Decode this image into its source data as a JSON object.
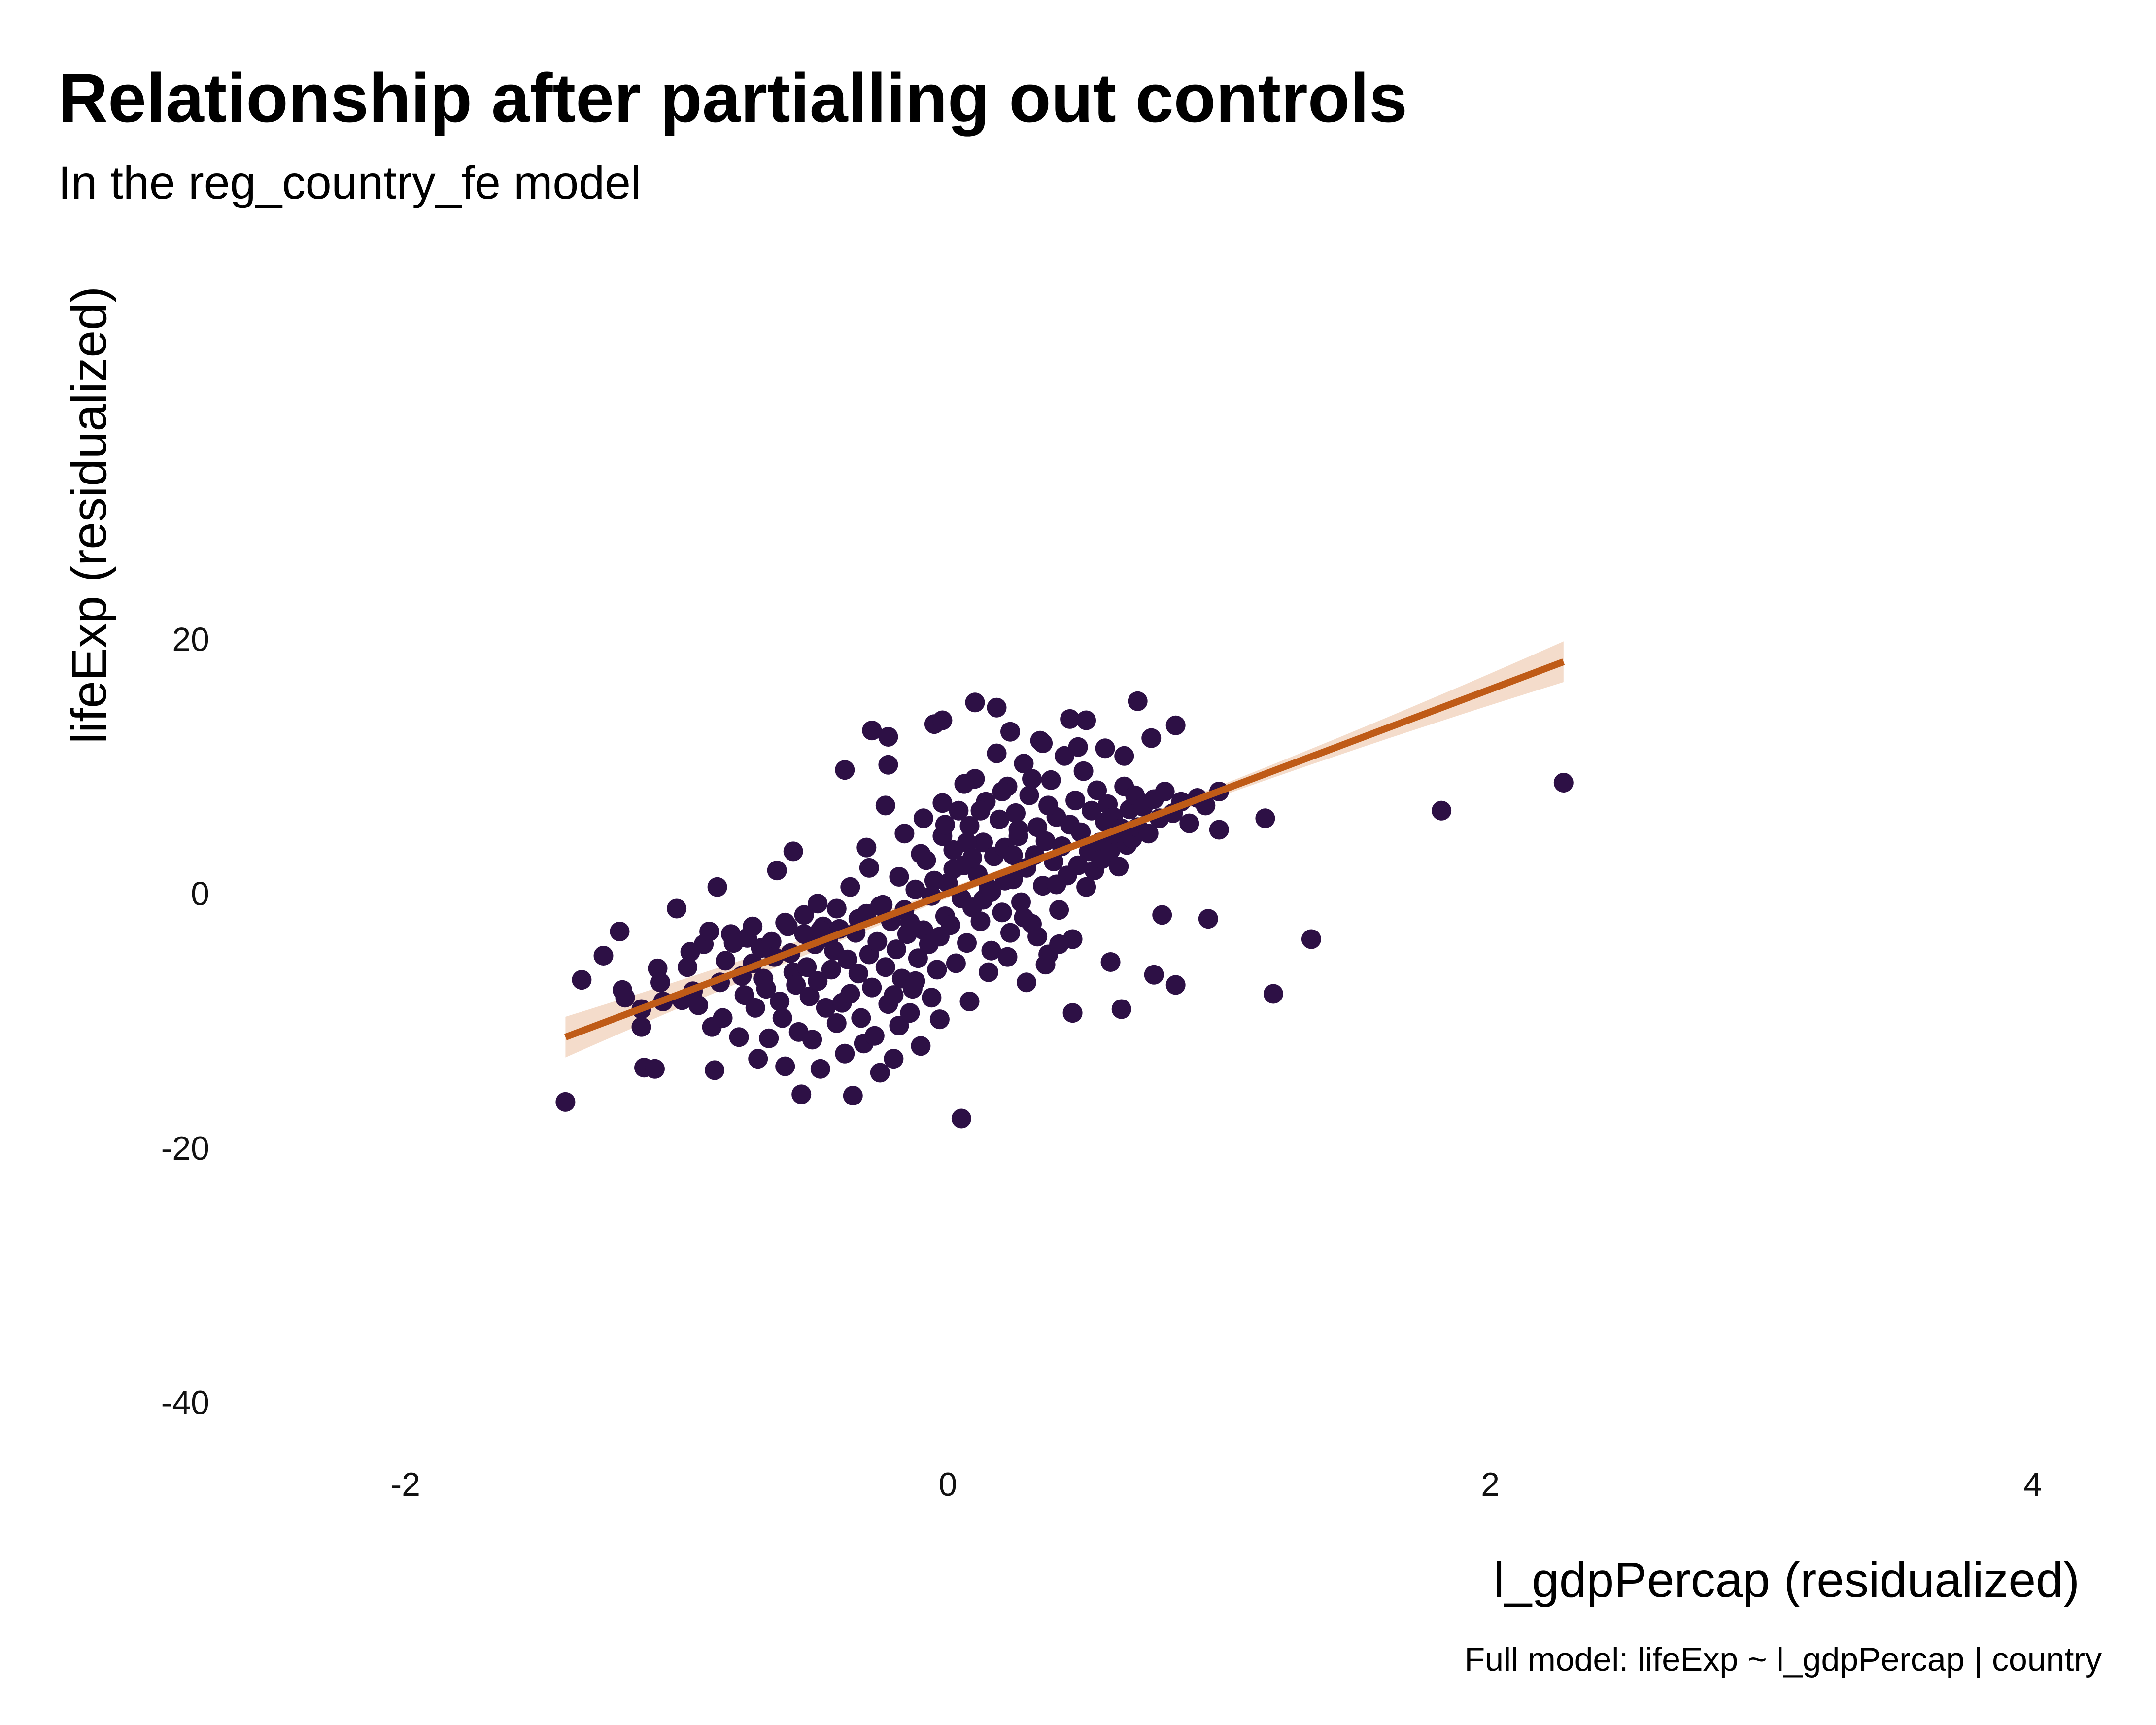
{
  "chart_data": {
    "type": "scatter",
    "title": "Relationship after partialling out controls",
    "subtitle": "In the reg_country_fe model",
    "xlabel": "l_gdpPercap (residualized)",
    "ylabel": "lifeExp (residualized)",
    "caption": "Full model: lifeExp ~ l_gdpPercap | country",
    "xlim": [
      -2.55,
      4.3
    ],
    "ylim": [
      -46,
      40
    ],
    "x_ticks": [
      -2,
      0,
      2,
      4
    ],
    "x_tick_labels": [
      "-2",
      "0",
      "2",
      "4"
    ],
    "y_ticks": [
      -40,
      -20,
      0,
      20
    ],
    "y_tick_labels": [
      "-40",
      "-20",
      "0",
      "20"
    ],
    "grid": false,
    "legend": "none",
    "point_color": "#2D1045",
    "fit_color": "#BF5B17",
    "band_color": "#F4DCCB",
    "fit": {
      "x": [
        -1.41,
        2.27
      ],
      "y": [
        -11.3,
        18.2
      ],
      "band_halfwidth_edge": 1.6,
      "band_halfwidth_center": 0.3
    },
    "points": [
      [
        -1.41,
        -16.4
      ],
      [
        -1.35,
        -6.8
      ],
      [
        -1.27,
        -4.9
      ],
      [
        -1.21,
        -3.0
      ],
      [
        -1.2,
        -7.6
      ],
      [
        -1.19,
        -8.2
      ],
      [
        -1.13,
        -9.1
      ],
      [
        -1.13,
        -10.5
      ],
      [
        -1.12,
        -13.7
      ],
      [
        -1.08,
        -13.8
      ],
      [
        -1.07,
        -5.9
      ],
      [
        -1.06,
        -7.0
      ],
      [
        -1.05,
        -8.5
      ],
      [
        -1.0,
        -1.2
      ],
      [
        -0.98,
        -8.4
      ],
      [
        -0.96,
        -5.8
      ],
      [
        -0.94,
        -7.7
      ],
      [
        -0.92,
        -8.8
      ],
      [
        -0.9,
        -4.0
      ],
      [
        -0.87,
        -10.5
      ],
      [
        -0.86,
        -13.9
      ],
      [
        -0.85,
        0.5
      ],
      [
        -0.84,
        -7.0
      ],
      [
        -0.83,
        -9.8
      ],
      [
        -0.82,
        -5.3
      ],
      [
        -0.8,
        -3.2
      ],
      [
        -0.77,
        -11.3
      ],
      [
        -0.76,
        -6.5
      ],
      [
        -0.75,
        -8.0
      ],
      [
        -0.74,
        -3.5
      ],
      [
        -0.72,
        -5.5
      ],
      [
        -0.71,
        -9.0
      ],
      [
        -0.7,
        -13.0
      ],
      [
        -0.69,
        -4.3
      ],
      [
        -0.68,
        -6.7
      ],
      [
        -0.67,
        -7.5
      ],
      [
        -0.66,
        -11.4
      ],
      [
        -0.65,
        -3.8
      ],
      [
        -0.64,
        -5.0
      ],
      [
        -0.63,
        1.8
      ],
      [
        -0.62,
        -8.5
      ],
      [
        -0.61,
        -9.8
      ],
      [
        -0.6,
        -13.6
      ],
      [
        -0.59,
        -2.6
      ],
      [
        -0.58,
        -4.7
      ],
      [
        -0.57,
        -6.2
      ],
      [
        -0.56,
        -7.2
      ],
      [
        -0.55,
        -10.9
      ],
      [
        -0.54,
        -15.8
      ],
      [
        -0.53,
        -3.2
      ],
      [
        -0.52,
        -5.8
      ],
      [
        -0.51,
        -8.1
      ],
      [
        -0.5,
        -11.5
      ],
      [
        -0.49,
        -4.0
      ],
      [
        -0.48,
        -6.9
      ],
      [
        -0.47,
        -13.8
      ],
      [
        -0.46,
        -2.6
      ],
      [
        -0.45,
        -9.0
      ],
      [
        -0.44,
        -3.5
      ],
      [
        -0.43,
        -6.0
      ],
      [
        -0.42,
        -4.5
      ],
      [
        -0.41,
        -10.2
      ],
      [
        -0.4,
        -2.8
      ],
      [
        -0.39,
        -8.6
      ],
      [
        -0.38,
        -12.6
      ],
      [
        -0.37,
        -5.2
      ],
      [
        -0.36,
        -7.9
      ],
      [
        -0.35,
        -15.9
      ],
      [
        -0.34,
        -3.1
      ],
      [
        -0.33,
        -6.3
      ],
      [
        -0.32,
        -9.8
      ],
      [
        -0.31,
        -11.8
      ],
      [
        -0.3,
        -1.6
      ],
      [
        -0.29,
        -4.8
      ],
      [
        -0.28,
        -7.4
      ],
      [
        -0.27,
        -11.2
      ],
      [
        -0.26,
        -3.8
      ],
      [
        -0.25,
        -14.1
      ],
      [
        -0.24,
        -0.9
      ],
      [
        -0.23,
        -5.8
      ],
      [
        -0.22,
        -8.7
      ],
      [
        -0.21,
        -2.2
      ],
      [
        -0.2,
        -13.0
      ],
      [
        -0.19,
        -4.4
      ],
      [
        -0.18,
        -10.4
      ],
      [
        -0.17,
        -6.7
      ],
      [
        -0.16,
        -1.3
      ],
      [
        -0.15,
        -3.2
      ],
      [
        -0.14,
        -9.4
      ],
      [
        -0.13,
        -7.5
      ],
      [
        -0.12,
        0.3
      ],
      [
        -0.11,
        -5.1
      ],
      [
        -0.1,
        -12.0
      ],
      [
        -0.09,
        -2.9
      ],
      [
        -0.08,
        2.6
      ],
      [
        -0.07,
        -4.0
      ],
      [
        -0.06,
        -8.2
      ],
      [
        -0.05,
        1.0
      ],
      [
        -0.04,
        -6.0
      ],
      [
        -0.03,
        -3.4
      ],
      [
        -0.02,
        4.5
      ],
      [
        -0.01,
        -1.8
      ],
      [
        0.0,
        0.8
      ],
      [
        0.01,
        -2.5
      ],
      [
        0.02,
        3.4
      ],
      [
        0.03,
        -5.5
      ],
      [
        0.04,
        6.5
      ],
      [
        0.05,
        -0.4
      ],
      [
        0.06,
        2.2
      ],
      [
        0.07,
        -3.9
      ],
      [
        0.08,
        5.3
      ],
      [
        0.09,
        -1.1
      ],
      [
        0.1,
        9.0
      ],
      [
        0.11,
        1.5
      ],
      [
        0.12,
        -2.2
      ],
      [
        0.13,
        4.0
      ],
      [
        0.14,
        7.2
      ],
      [
        0.15,
        0.4
      ],
      [
        0.16,
        -4.5
      ],
      [
        0.17,
        2.9
      ],
      [
        0.18,
        11.0
      ],
      [
        0.19,
        5.8
      ],
      [
        0.2,
        -1.5
      ],
      [
        0.21,
        3.6
      ],
      [
        0.22,
        8.4
      ],
      [
        0.23,
        -3.1
      ],
      [
        0.24,
        1.1
      ],
      [
        0.25,
        6.3
      ],
      [
        0.26,
        4.5
      ],
      [
        0.27,
        -0.7
      ],
      [
        0.28,
        10.2
      ],
      [
        0.29,
        2.0
      ],
      [
        0.3,
        7.7
      ],
      [
        0.31,
        -2.4
      ],
      [
        0.32,
        3.0
      ],
      [
        0.33,
        5.2
      ],
      [
        0.34,
        12.0
      ],
      [
        0.35,
        0.6
      ],
      [
        0.36,
        4.1
      ],
      [
        0.37,
        -4.8
      ],
      [
        0.38,
        8.9
      ],
      [
        0.39,
        2.5
      ],
      [
        0.4,
        6.0
      ],
      [
        0.41,
        -1.3
      ],
      [
        0.42,
        3.7
      ],
      [
        0.43,
        10.8
      ],
      [
        0.44,
        1.4
      ],
      [
        0.45,
        5.4
      ],
      [
        0.46,
        -3.6
      ],
      [
        0.47,
        7.3
      ],
      [
        0.48,
        2.2
      ],
      [
        0.49,
        4.8
      ],
      [
        0.5,
        9.6
      ],
      [
        0.51,
        0.5
      ],
      [
        0.52,
        3.3
      ],
      [
        0.53,
        6.5
      ],
      [
        0.54,
        1.8
      ],
      [
        0.55,
        8.1
      ],
      [
        0.56,
        4.0
      ],
      [
        0.57,
        2.7
      ],
      [
        0.58,
        5.6
      ],
      [
        0.59,
        7.0
      ],
      [
        0.6,
        3.4
      ],
      [
        0.61,
        6.0
      ],
      [
        0.62,
        4.6
      ],
      [
        0.63,
        2.1
      ],
      [
        0.64,
        5.1
      ],
      [
        0.65,
        8.4
      ],
      [
        0.66,
        3.8
      ],
      [
        0.67,
        6.6
      ],
      [
        0.68,
        4.3
      ],
      [
        0.69,
        7.7
      ],
      [
        0.7,
        5.2
      ],
      [
        0.72,
        6.8
      ],
      [
        0.74,
        4.7
      ],
      [
        0.76,
        7.4
      ],
      [
        0.78,
        5.9
      ],
      [
        0.8,
        8.0
      ],
      [
        0.83,
        6.3
      ],
      [
        0.86,
        7.2
      ],
      [
        0.89,
        5.5
      ],
      [
        0.92,
        7.5
      ],
      [
        0.95,
        6.9
      ],
      [
        1.0,
        5.0
      ],
      [
        1.0,
        8.0
      ],
      [
        1.17,
        5.9
      ],
      [
        1.34,
        -3.6
      ],
      [
        1.82,
        6.5
      ],
      [
        2.27,
        8.7
      ],
      [
        0.1,
        15.0
      ],
      [
        0.18,
        14.6
      ],
      [
        0.7,
        15.1
      ],
      [
        0.45,
        13.7
      ],
      [
        0.51,
        13.6
      ],
      [
        0.84,
        13.2
      ],
      [
        0.75,
        12.2
      ],
      [
        0.58,
        11.4
      ],
      [
        0.65,
        10.8
      ],
      [
        -0.28,
        12.8
      ],
      [
        -0.22,
        12.3
      ],
      [
        -0.05,
        13.3
      ],
      [
        -0.02,
        13.6
      ],
      [
        0.23,
        12.7
      ],
      [
        0.35,
        11.8
      ],
      [
        -0.38,
        9.7
      ],
      [
        -0.22,
        10.1
      ],
      [
        0.48,
        11.5
      ],
      [
        0.05,
        -17.7
      ],
      [
        0.6,
        -5.4
      ],
      [
        0.76,
        -6.4
      ],
      [
        0.84,
        -7.2
      ],
      [
        0.64,
        -9.1
      ],
      [
        0.46,
        -9.4
      ],
      [
        1.2,
        -7.9
      ],
      [
        0.96,
        -2.0
      ],
      [
        0.79,
        -1.7
      ],
      [
        -0.57,
        3.3
      ],
      [
        -0.48,
        -0.8
      ],
      [
        -0.36,
        0.5
      ],
      [
        -0.29,
        2.0
      ],
      [
        -0.18,
        1.3
      ],
      [
        -0.1,
        3.1
      ],
      [
        -0.01,
        5.4
      ],
      [
        0.07,
        4.0
      ],
      [
        0.13,
        -0.5
      ],
      [
        0.21,
        1.0
      ],
      [
        0.28,
        -1.9
      ],
      [
        0.33,
        -3.4
      ],
      [
        0.4,
        0.7
      ],
      [
        -0.25,
        -1.0
      ],
      [
        -0.14,
        -2.3
      ],
      [
        -0.06,
        -0.2
      ],
      [
        0.02,
        1.9
      ],
      [
        0.09,
        2.8
      ],
      [
        0.16,
        0.1
      ],
      [
        0.24,
        3.0
      ],
      [
        -0.33,
        -2.0
      ],
      [
        -0.41,
        -1.2
      ],
      [
        -0.47,
        -2.9
      ],
      [
        -0.53,
        -1.7
      ],
      [
        -0.6,
        -2.3
      ],
      [
        -0.72,
        -2.6
      ],
      [
        -0.79,
        -3.9
      ],
      [
        -0.88,
        -3.0
      ],
      [
        -0.95,
        -4.6
      ],
      [
        0.12,
        6.5
      ],
      [
        0.2,
        8.0
      ],
      [
        0.26,
        5.0
      ],
      [
        0.31,
        9.0
      ],
      [
        0.37,
        6.9
      ],
      [
        -0.02,
        7.1
      ],
      [
        0.06,
        8.6
      ],
      [
        -0.09,
        5.9
      ],
      [
        -0.16,
        4.7
      ],
      [
        -0.23,
        6.9
      ],
      [
        -0.3,
        3.6
      ],
      [
        0.15,
        -6.2
      ],
      [
        0.08,
        -8.5
      ],
      [
        -0.03,
        -9.9
      ],
      [
        -0.12,
        -6.9
      ],
      [
        0.22,
        -5.0
      ],
      [
        0.29,
        -7.0
      ],
      [
        0.36,
        -5.6
      ],
      [
        0.41,
        -4.0
      ],
      [
        -0.2,
        -8.0
      ]
    ]
  }
}
